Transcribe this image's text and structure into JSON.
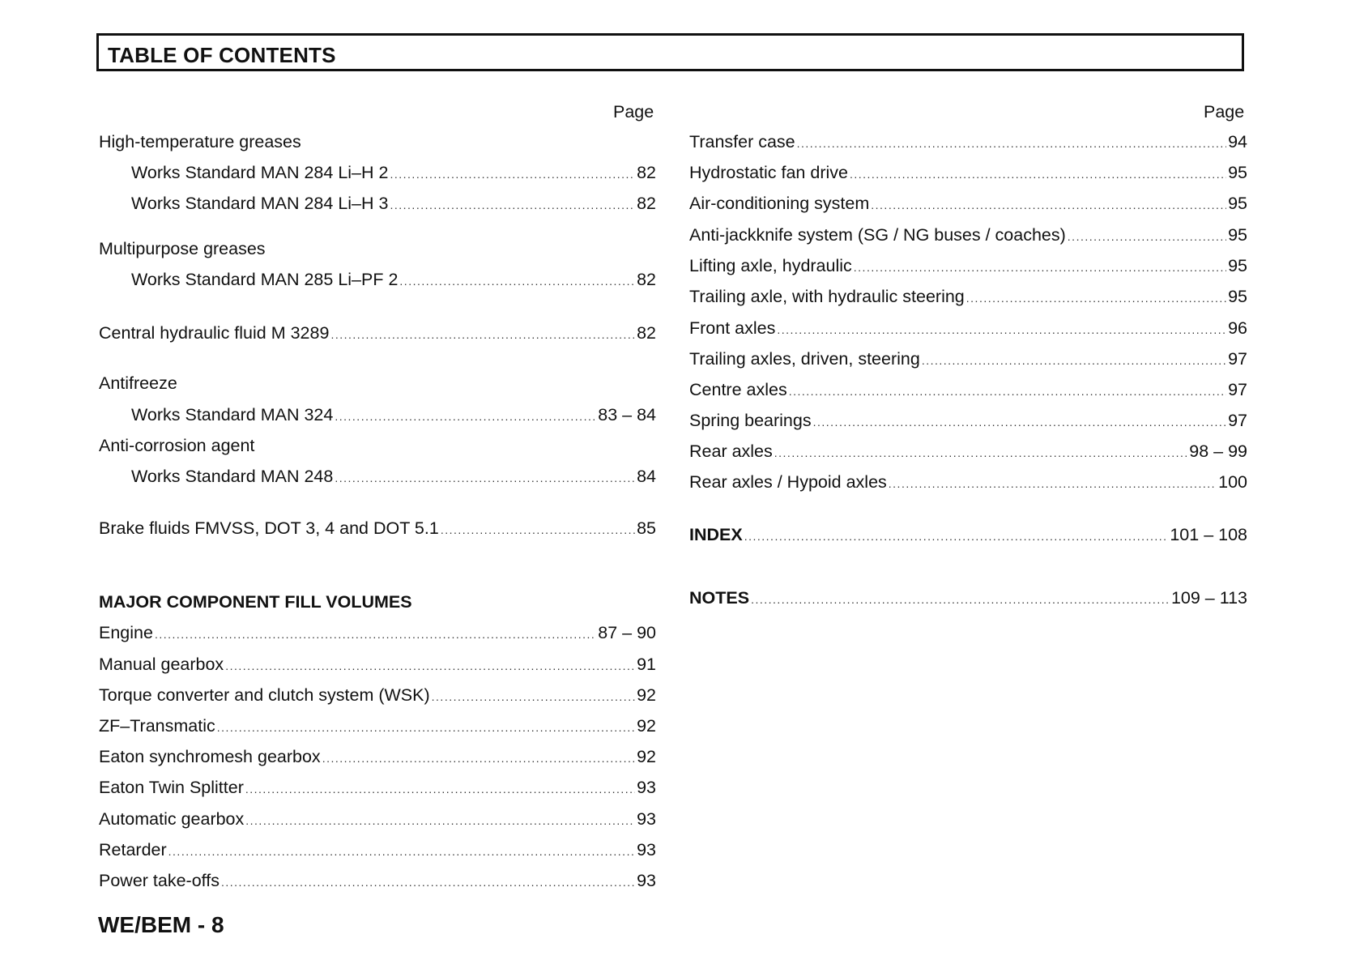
{
  "title": "TABLE OF CONTENTS",
  "page_label": "Page",
  "left": [
    {
      "label": "High-temperature greases",
      "page": "",
      "kind": "heading"
    },
    {
      "label": "Works Standard MAN 284 Li–H 2",
      "page": "82",
      "kind": "sub"
    },
    {
      "label": "Works Standard MAN 284 Li–H 3",
      "page": "82",
      "kind": "sub"
    },
    {
      "label": "Multipurpose greases",
      "page": "",
      "kind": "heading"
    },
    {
      "label": "Works Standard MAN 285 Li–PF 2",
      "page": "82",
      "kind": "sub"
    },
    {
      "label": "Central hydraulic fluid M 3289",
      "page": "82",
      "kind": "main"
    },
    {
      "label": "Antifreeze",
      "page": "",
      "kind": "heading"
    },
    {
      "label": "Works Standard MAN 324",
      "page": "83 – 84",
      "kind": "sub"
    },
    {
      "label": "Anti-corrosion agent",
      "page": "",
      "kind": "heading"
    },
    {
      "label": "Works Standard MAN 248",
      "page": "84",
      "kind": "sub"
    },
    {
      "label": "Brake fluids FMVSS, DOT 3, 4 and DOT 5.1",
      "page": "85",
      "kind": "main"
    },
    {
      "label": "MAJOR COMPONENT FILL VOLUMES",
      "page": "",
      "kind": "section"
    },
    {
      "label": "Engine",
      "page": "87 – 90",
      "kind": "main"
    },
    {
      "label": "Manual gearbox",
      "page": "91",
      "kind": "main"
    },
    {
      "label": "Torque converter and clutch system (WSK)",
      "page": "92",
      "kind": "main"
    },
    {
      "label": "ZF–Transmatic",
      "page": "92",
      "kind": "main"
    },
    {
      "label": "Eaton synchromesh gearbox",
      "page": "92",
      "kind": "main"
    },
    {
      "label": "Eaton Twin Splitter",
      "page": "93",
      "kind": "main"
    },
    {
      "label": "Automatic gearbox",
      "page": "93",
      "kind": "main"
    },
    {
      "label": "Retarder",
      "page": "93",
      "kind": "main"
    },
    {
      "label": "Power take-offs",
      "page": "93",
      "kind": "main"
    }
  ],
  "right": [
    {
      "label": "Transfer case",
      "page": "94",
      "kind": "main"
    },
    {
      "label": "Hydrostatic fan drive",
      "page": "95",
      "kind": "main"
    },
    {
      "label": "Air-conditioning system",
      "page": "95",
      "kind": "main"
    },
    {
      "label": "Anti-jackknife system (SG / NG buses / coaches)",
      "page": "95",
      "kind": "main"
    },
    {
      "label": "Lifting axle, hydraulic",
      "page": "95",
      "kind": "main"
    },
    {
      "label": "Trailing axle, with hydraulic steering",
      "page": "95",
      "kind": "main"
    },
    {
      "label": "Front axles",
      "page": "96",
      "kind": "main"
    },
    {
      "label": "Trailing axles, driven, steering",
      "page": "97",
      "kind": "main"
    },
    {
      "label": "Centre axles",
      "page": "97",
      "kind": "main"
    },
    {
      "label": "Spring bearings",
      "page": "97",
      "kind": "main"
    },
    {
      "label": "Rear axles",
      "page": "98 – 99",
      "kind": "main"
    },
    {
      "label": "Rear axles / Hypoid axles",
      "page": "100",
      "kind": "main"
    },
    {
      "label": "INDEX",
      "page": "101 – 108",
      "kind": "bold"
    },
    {
      "label": "NOTES",
      "page": "109 – 113",
      "kind": "bold"
    }
  ],
  "footer": "WE/BEM - 8"
}
